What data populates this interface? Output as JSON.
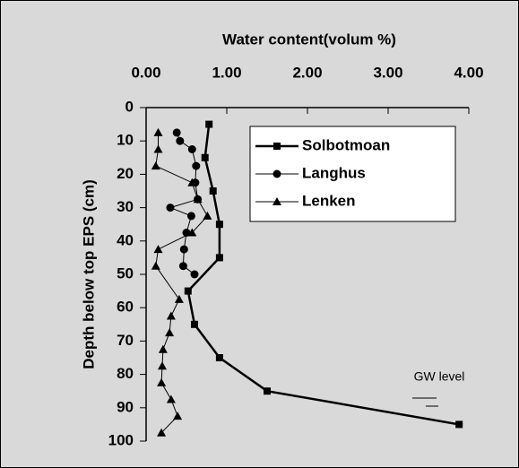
{
  "chart_data": {
    "type": "line",
    "title": "Water content(volum %)",
    "y_label": "Depth below top EPS (cm)",
    "annotation": "GW level",
    "xlim": [
      0,
      4
    ],
    "xticks": [
      {
        "value": 0,
        "label": "0.00"
      },
      {
        "value": 1,
        "label": "1.00"
      },
      {
        "value": 2,
        "label": "2.00"
      },
      {
        "value": 3,
        "label": "3.00"
      },
      {
        "value": 4,
        "label": "4.00"
      }
    ],
    "ylim": [
      0,
      100
    ],
    "yticks": [
      0,
      10,
      20,
      30,
      40,
      50,
      60,
      70,
      80,
      90,
      100
    ],
    "y_inverted": true,
    "x_axis_position": "top",
    "series": [
      {
        "name": "Solbotmoan",
        "color": "#000000",
        "marker": "square",
        "width": 2.5,
        "x": [
          0.78,
          0.73,
          0.83,
          0.91,
          0.91,
          0.52,
          0.6,
          0.91,
          1.5,
          3.88
        ],
        "y": [
          5,
          15,
          25,
          35,
          45,
          55,
          65,
          75,
          85,
          95
        ]
      },
      {
        "name": "Langhus",
        "color": "#000000",
        "marker": "circle",
        "width": 1,
        "x": [
          0.38,
          0.42,
          0.57,
          0.62,
          0.61,
          0.64,
          0.3,
          0.56,
          0.5,
          0.47,
          0.46,
          0.6
        ],
        "y": [
          7.5,
          10,
          12.5,
          17.5,
          22.5,
          27.5,
          30,
          32.5,
          37.5,
          42.5,
          47.5,
          50
        ]
      },
      {
        "name": "Lenken",
        "color": "#000000",
        "marker": "triangle",
        "width": 1,
        "x": [
          0.15,
          0.15,
          0.12,
          0.57,
          0.64,
          0.76,
          0.57,
          0.15,
          0.12,
          0.41,
          0.31,
          0.29,
          0.21,
          0.2,
          0.19,
          0.31,
          0.39,
          0.19
        ],
        "y": [
          7.5,
          12.5,
          17.5,
          22.5,
          27.5,
          32.5,
          37.5,
          42.5,
          47.5,
          57.5,
          62.5,
          67.5,
          72.5,
          77.5,
          82.5,
          87.5,
          92.5,
          97.5
        ]
      }
    ]
  }
}
